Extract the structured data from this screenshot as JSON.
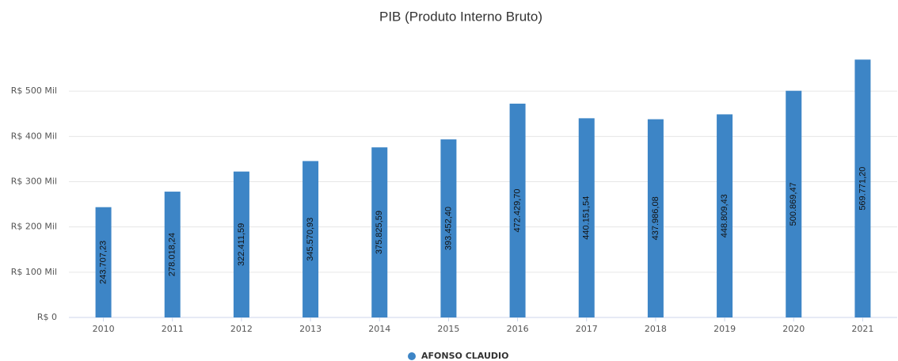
{
  "chart_data": {
    "type": "bar",
    "title": "PIB (Produto Interno Bruto)",
    "categories": [
      "2010",
      "2011",
      "2012",
      "2013",
      "2014",
      "2015",
      "2016",
      "2017",
      "2018",
      "2019",
      "2020",
      "2021"
    ],
    "series": [
      {
        "name": "AFONSO CLAUDIO",
        "color": "#3d85c6",
        "values": [
          243707.23,
          278018.24,
          322411.59,
          345570.93,
          375825.59,
          393452.4,
          472429.7,
          440151.54,
          437986.08,
          448809.43,
          500869.47,
          569771.2
        ],
        "value_labels": [
          "243.707,23",
          "278.018,24",
          "322.411,59",
          "345.570,93",
          "375.825,59",
          "393.452,40",
          "472.429,70",
          "440.151,54",
          "437.986,08",
          "448.809,43",
          "500.869,47",
          "569.771,20"
        ]
      }
    ],
    "ylim": [
      0,
      600000
    ],
    "yticks": [
      {
        "value": 0,
        "label": "R$ 0"
      },
      {
        "value": 100000,
        "label": "R$ 100 Mil"
      },
      {
        "value": 200000,
        "label": "R$ 200 Mil"
      },
      {
        "value": 300000,
        "label": "R$ 300 Mil"
      },
      {
        "value": 400000,
        "label": "R$ 400 Mil"
      },
      {
        "value": 500000,
        "label": "R$ 500 Mil"
      }
    ],
    "grid": true,
    "legend": "bottom"
  }
}
